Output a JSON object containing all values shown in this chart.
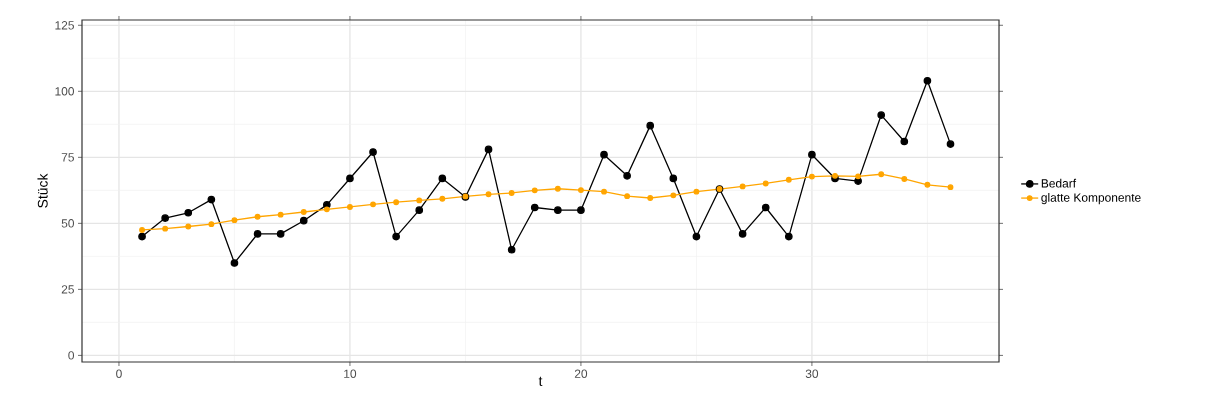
{
  "chart_data": {
    "type": "line",
    "xlabel": "t",
    "ylabel": "Stück",
    "x": [
      1,
      2,
      3,
      4,
      5,
      6,
      7,
      8,
      9,
      10,
      11,
      12,
      13,
      14,
      15,
      16,
      17,
      18,
      19,
      20,
      21,
      22,
      23,
      24,
      25,
      26,
      27,
      28,
      29,
      30,
      31,
      32,
      33,
      34,
      35,
      36
    ],
    "series": [
      {
        "name": "Bedarf",
        "color": "#000000",
        "values": [
          45,
          52,
          54,
          59,
          35,
          46,
          46,
          51,
          57,
          67,
          77,
          45,
          55,
          67,
          60,
          78,
          40,
          56,
          55,
          55,
          76,
          68,
          87,
          67,
          45,
          63,
          46,
          56,
          45,
          76,
          67,
          66,
          91,
          81,
          104,
          80
        ]
      },
      {
        "name": "glatte Komponente",
        "color": "#ffa500",
        "values": [
          47.5,
          48,
          48.8,
          49.7,
          51.2,
          52.5,
          53.3,
          54.3,
          55.3,
          56.2,
          57.2,
          58,
          58.7,
          59.3,
          60.2,
          61,
          61.5,
          62.5,
          63.1,
          62.6,
          62,
          60.3,
          59.6,
          60.6,
          62,
          63,
          64,
          65.1,
          66.5,
          67.7,
          68,
          67.8,
          68.6,
          66.8,
          64.6,
          63.7
        ]
      }
    ],
    "xlim": [
      -1.6,
      38.1
    ],
    "ylim": [
      -2.5,
      127
    ],
    "xticks": [
      0,
      10,
      20,
      30
    ],
    "yticks": [
      0,
      25,
      50,
      75,
      100,
      125
    ],
    "grid": true,
    "legend": "right",
    "marker": "circle",
    "line_style": "solid"
  }
}
